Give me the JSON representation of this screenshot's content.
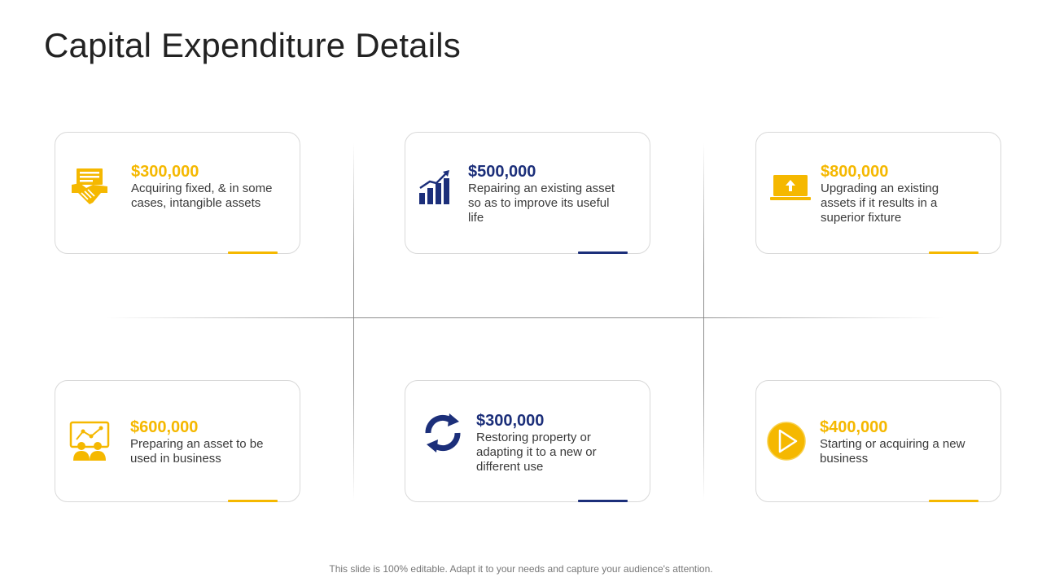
{
  "title": "Capital Expenditure Details",
  "colors": {
    "yellow": "#f5b800",
    "blue": "#1c2f7a"
  },
  "cards": [
    {
      "amount": "$300,000",
      "description": "Acquiring fixed, & in some cases, intangible assets",
      "icon": "handshake-contract-icon",
      "color": "yellow"
    },
    {
      "amount": "$500,000",
      "description": "Repairing an existing asset so as to improve its useful life",
      "icon": "growth-chart-icon",
      "color": "blue"
    },
    {
      "amount": "$800,000",
      "description": "Upgrading an existing assets if it results in a superior fixture",
      "icon": "laptop-upload-icon",
      "color": "yellow"
    },
    {
      "amount": "$600,000",
      "description": "Preparing an asset to be used in business",
      "icon": "presentation-audience-icon",
      "color": "yellow"
    },
    {
      "amount": "$300,000",
      "description": "Restoring property or adapting it to a new or different use",
      "icon": "refresh-arrows-icon",
      "color": "blue"
    },
    {
      "amount": "$400,000",
      "description": "Starting or acquiring a new business",
      "icon": "play-circle-icon",
      "color": "yellow"
    }
  ],
  "footer": "This slide is 100% editable. Adapt it to your needs and capture your audience's attention."
}
